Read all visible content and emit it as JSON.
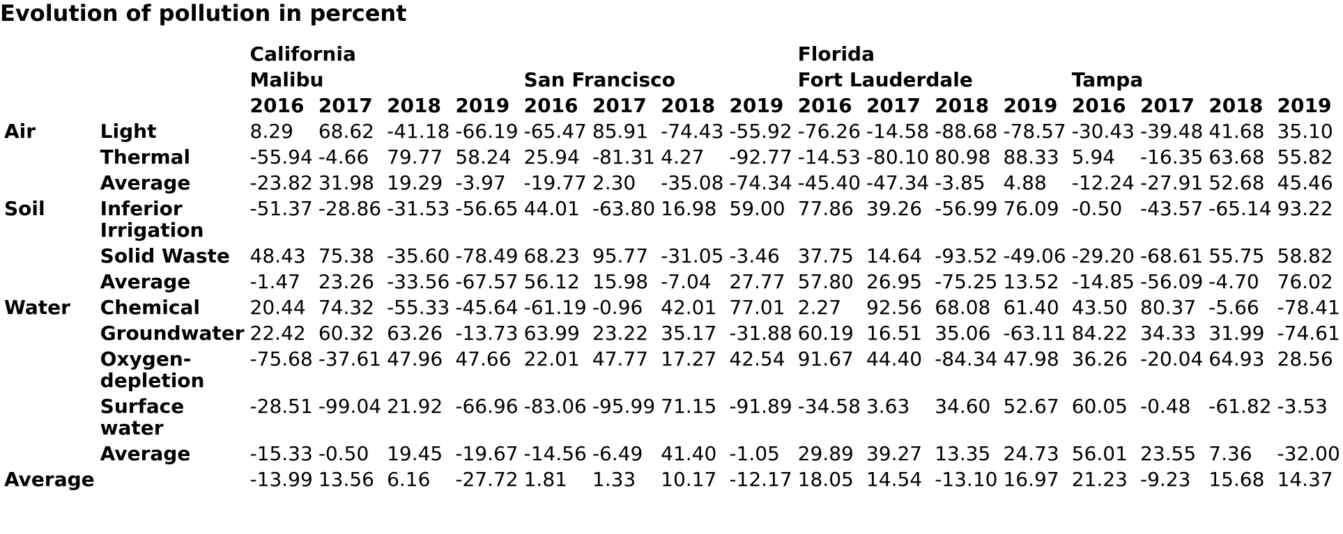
{
  "title": "Evolution of pollution in percent",
  "header": {
    "states": [
      "California",
      "Florida"
    ],
    "cities": [
      "Malibu",
      "San Francisco",
      "Fort Lauderdale",
      "Tampa"
    ],
    "years": [
      "2016",
      "2017",
      "2018",
      "2019",
      "2016",
      "2017",
      "2018",
      "2019",
      "2016",
      "2017",
      "2018",
      "2019",
      "2016",
      "2017",
      "2018",
      "2019"
    ]
  },
  "rows": [
    {
      "category": "Air",
      "sub": "Light",
      "values": [
        "8.29",
        "68.62",
        "-41.18",
        "-66.19",
        "-65.47",
        "85.91",
        "-74.43",
        "-55.92",
        "-76.26",
        "-14.58",
        "-88.68",
        "-78.57",
        "-30.43",
        "-39.48",
        "41.68",
        "35.10"
      ]
    },
    {
      "category": "",
      "sub": "Thermal",
      "values": [
        "-55.94",
        "-4.66",
        "79.77",
        "58.24",
        "25.94",
        "-81.31",
        "4.27",
        "-92.77",
        "-14.53",
        "-80.10",
        "80.98",
        "88.33",
        "5.94",
        "-16.35",
        "63.68",
        "55.82"
      ]
    },
    {
      "category": "",
      "sub": "Average",
      "values": [
        "-23.82",
        "31.98",
        "19.29",
        "-3.97",
        "-19.77",
        "2.30",
        "-35.08",
        "-74.34",
        "-45.40",
        "-47.34",
        "-3.85",
        "4.88",
        "-12.24",
        "-27.91",
        "52.68",
        "45.46"
      ]
    },
    {
      "category": "Soil",
      "sub": "Inferior Irrigation",
      "values": [
        "-51.37",
        "-28.86",
        "-31.53",
        "-56.65",
        "44.01",
        "-63.80",
        "16.98",
        "59.00",
        "77.86",
        "39.26",
        "-56.99",
        "76.09",
        "-0.50",
        "-43.57",
        "-65.14",
        "93.22"
      ]
    },
    {
      "category": "",
      "sub": "Solid Waste",
      "values": [
        "48.43",
        "75.38",
        "-35.60",
        "-78.49",
        "68.23",
        "95.77",
        "-31.05",
        "-3.46",
        "37.75",
        "14.64",
        "-93.52",
        "-49.06",
        "-29.20",
        "-68.61",
        "55.75",
        "58.82"
      ]
    },
    {
      "category": "",
      "sub": "Average",
      "values": [
        "-1.47",
        "23.26",
        "-33.56",
        "-67.57",
        "56.12",
        "15.98",
        "-7.04",
        "27.77",
        "57.80",
        "26.95",
        "-75.25",
        "13.52",
        "-14.85",
        "-56.09",
        "-4.70",
        "76.02"
      ]
    },
    {
      "category": "Water",
      "sub": "Chemical",
      "values": [
        "20.44",
        "74.32",
        "-55.33",
        "-45.64",
        "-61.19",
        "-0.96",
        "42.01",
        "77.01",
        "2.27",
        "92.56",
        "68.08",
        "61.40",
        "43.50",
        "80.37",
        "-5.66",
        "-78.41"
      ]
    },
    {
      "category": "",
      "sub": "Groundwater",
      "values": [
        "22.42",
        "60.32",
        "63.26",
        "-13.73",
        "63.99",
        "23.22",
        "35.17",
        "-31.88",
        "60.19",
        "16.51",
        "35.06",
        "-63.11",
        "84.22",
        "34.33",
        "31.99",
        "-74.61"
      ]
    },
    {
      "category": "",
      "sub": "Oxygen-depletion",
      "values": [
        "-75.68",
        "-37.61",
        "47.96",
        "47.66",
        "22.01",
        "47.77",
        "17.27",
        "42.54",
        "91.67",
        "44.40",
        "-84.34",
        "47.98",
        "36.26",
        "-20.04",
        "64.93",
        "28.56"
      ]
    },
    {
      "category": "",
      "sub": "Surface water",
      "values": [
        "-28.51",
        "-99.04",
        "21.92",
        "-66.96",
        "-83.06",
        "-95.99",
        "71.15",
        "-91.89",
        "-34.58",
        "3.63",
        "34.60",
        "52.67",
        "60.05",
        "-0.48",
        "-61.82",
        "-3.53"
      ]
    },
    {
      "category": "",
      "sub": "Average",
      "values": [
        "-15.33",
        "-0.50",
        "19.45",
        "-19.67",
        "-14.56",
        "-6.49",
        "41.40",
        "-1.05",
        "29.89",
        "39.27",
        "13.35",
        "24.73",
        "56.01",
        "23.55",
        "7.36",
        "-32.00"
      ]
    },
    {
      "category": "Average",
      "sub": "",
      "values": [
        "-13.99",
        "13.56",
        "6.16",
        "-27.72",
        "1.81",
        "1.33",
        "10.17",
        "-12.17",
        "18.05",
        "14.54",
        "-13.10",
        "16.97",
        "21.23",
        "-9.23",
        "15.68",
        "14.37"
      ]
    }
  ]
}
